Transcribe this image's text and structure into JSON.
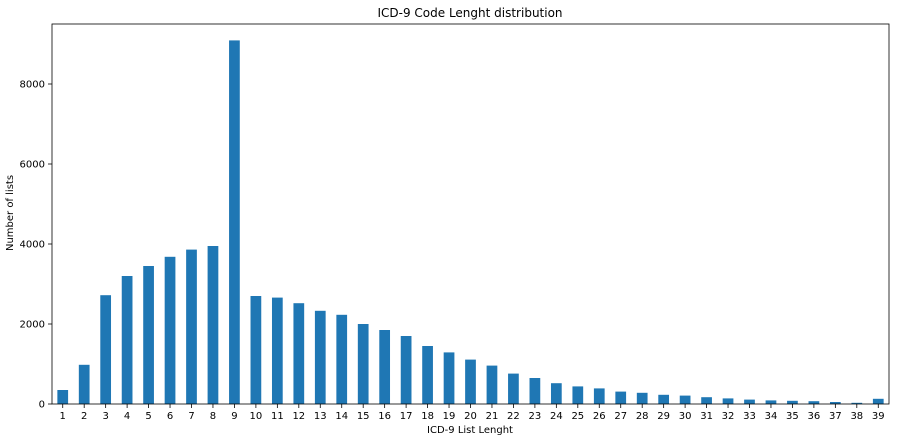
{
  "chart_data": {
    "type": "bar",
    "title": "ICD-9 Code Lenght distribution",
    "xlabel": "ICD-9 List Lenght",
    "ylabel": "Number of lists",
    "ylim": [
      0,
      9500
    ],
    "yticks": [
      0,
      2000,
      4000,
      6000,
      8000
    ],
    "grid": false,
    "bar_color": "#1f77b4",
    "categories": [
      "1",
      "2",
      "3",
      "4",
      "5",
      "6",
      "7",
      "8",
      "9",
      "10",
      "11",
      "12",
      "13",
      "14",
      "15",
      "16",
      "17",
      "18",
      "19",
      "20",
      "21",
      "22",
      "23",
      "24",
      "25",
      "26",
      "27",
      "28",
      "29",
      "30",
      "31",
      "32",
      "33",
      "34",
      "35",
      "36",
      "37",
      "38",
      "39"
    ],
    "values": [
      350,
      980,
      2720,
      3200,
      3450,
      3680,
      3860,
      3950,
      9090,
      2700,
      2660,
      2520,
      2330,
      2230,
      2000,
      1850,
      1700,
      1450,
      1290,
      1110,
      960,
      760,
      650,
      520,
      440,
      390,
      310,
      280,
      230,
      210,
      170,
      140,
      110,
      90,
      80,
      70,
      50,
      30,
      130
    ]
  }
}
